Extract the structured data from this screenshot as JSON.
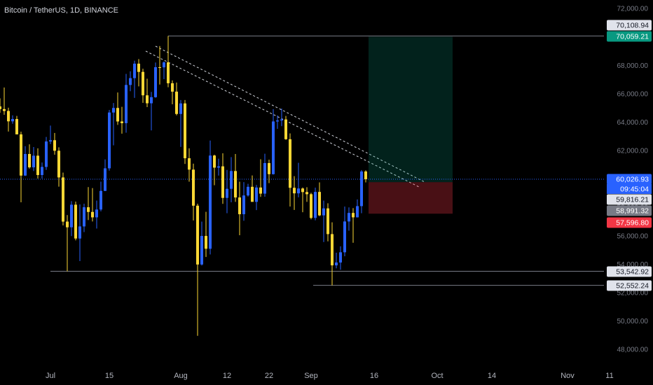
{
  "chart_data": {
    "type": "candlestick",
    "title": "Bitcoin / TetherUS, 1D, BINANCE",
    "up_color": "#2962ff",
    "down_color": "#fdd835",
    "x": [
      -12,
      -11,
      -10,
      -9,
      -8,
      -7,
      -6,
      -5,
      -4,
      -3,
      -2,
      -1,
      0,
      1,
      2,
      3,
      4,
      5,
      6,
      7,
      8,
      9,
      10,
      11,
      12,
      13,
      14,
      15,
      16,
      17,
      18,
      19,
      20,
      21,
      22,
      23,
      24,
      25,
      26,
      27,
      28,
      29,
      30,
      31,
      32,
      33,
      34,
      35,
      36,
      37,
      38,
      39,
      40,
      41,
      42,
      43,
      44,
      45,
      46,
      47,
      48,
      49,
      50,
      51,
      52,
      53,
      54,
      55,
      56,
      57,
      58,
      59,
      60,
      61,
      62,
      63,
      64,
      65,
      66,
      67,
      68,
      69,
      70,
      71,
      72,
      73,
      74,
      75
    ],
    "open": [
      65150,
      64960,
      64830,
      64100,
      64260,
      63180,
      60280,
      61800,
      60860,
      61680,
      60320,
      60890,
      62680,
      62770,
      62030,
      60150,
      57040,
      56640,
      58230,
      55850,
      56700,
      58050,
      57720,
      57340,
      57890,
      59200,
      60790,
      64720,
      65040,
      64090,
      63970,
      66660,
      67140,
      68160,
      67580,
      65930,
      65370,
      65800,
      67910,
      67900,
      68250,
      66780,
      66190,
      64620,
      65360,
      61500,
      60700,
      58160,
      54020,
      56030,
      55130,
      61690,
      60840,
      60930,
      58710,
      59350,
      60600,
      58740,
      57560,
      58880,
      59490,
      58430,
      59440,
      59010,
      61160,
      60380,
      64090,
      64160,
      64230,
      62840,
      59420,
      59030,
      59370,
      59120,
      58970,
      57300,
      59130,
      57480,
      57970,
      56160,
      53960,
      54160,
      54880,
      57050,
      57650,
      57340,
      58130,
      60570
    ],
    "high": [
      65720,
      66480,
      65060,
      64520,
      64480,
      63370,
      62350,
      62480,
      62290,
      62200,
      61200,
      63000,
      63800,
      63280,
      62270,
      60490,
      57500,
      58480,
      58450,
      58250,
      58300,
      59470,
      59400,
      58520,
      59850,
      61420,
      64900,
      65390,
      66130,
      65120,
      67440,
      67620,
      68370,
      68480,
      67800,
      67100,
      66170,
      68240,
      69400,
      68320,
      70108,
      66980,
      66830,
      65600,
      65600,
      62200,
      61120,
      58300,
      57040,
      57730,
      62750,
      61750,
      61470,
      61850,
      60680,
      61580,
      61800,
      59850,
      59820,
      59700,
      60290,
      59620,
      61430,
      61820,
      61400,
      64960,
      64520,
      65000,
      64480,
      63250,
      60240,
      61180,
      59440,
      59460,
      59070,
      59430,
      59800,
      58520,
      58330,
      56990,
      54850,
      55300,
      58100,
      58040,
      57990,
      58600,
      60670,
      60650
    ],
    "low": [
      64700,
      64560,
      63380,
      63930,
      63180,
      58400,
      60250,
      60770,
      60600,
      60070,
      60070,
      60680,
      62500,
      61750,
      59500,
      56770,
      53540,
      56020,
      55720,
      54260,
      56300,
      57150,
      57050,
      56550,
      57760,
      59200,
      60630,
      62410,
      63850,
      63230,
      63300,
      66220,
      65750,
      66560,
      65400,
      65100,
      63460,
      65760,
      66690,
      67070,
      66500,
      65300,
      64520,
      62300,
      61100,
      59850,
      57120,
      49000,
      53950,
      54550,
      54730,
      59600,
      60280,
      58290,
      57630,
      58400,
      58430,
      56080,
      57100,
      58800,
      58450,
      57850,
      58780,
      58790,
      59750,
      60350,
      63570,
      63760,
      62800,
      58100,
      57860,
      58750,
      57700,
      58430,
      57200,
      57130,
      57420,
      55600,
      55650,
      52550,
      53750,
      53650,
      54600,
      56400,
      55550,
      57330,
      57630,
      59800
    ],
    "close": [
      64960,
      64830,
      64100,
      64260,
      63180,
      60280,
      61800,
      60860,
      61680,
      60320,
      60890,
      62680,
      62770,
      62030,
      60150,
      57040,
      56640,
      58230,
      55850,
      56700,
      58050,
      57720,
      57340,
      57890,
      59200,
      60790,
      64720,
      65040,
      64090,
      63970,
      66660,
      67140,
      68160,
      67580,
      65930,
      65370,
      65800,
      67910,
      67900,
      68250,
      66780,
      66190,
      64620,
      65360,
      61500,
      60700,
      58160,
      54020,
      56030,
      55130,
      61690,
      60840,
      60930,
      58710,
      59350,
      60600,
      58740,
      57560,
      58880,
      59490,
      58430,
      59440,
      59010,
      61160,
      60380,
      64090,
      64160,
      64230,
      62840,
      59420,
      59030,
      59370,
      59120,
      58970,
      57300,
      59130,
      57480,
      57970,
      56160,
      53960,
      54160,
      54880,
      57050,
      57650,
      57340,
      58130,
      60570,
      60027
    ],
    "xlim": [
      -12,
      143.33
    ],
    "xticks": [
      {
        "value": 0,
        "label": "Jul"
      },
      {
        "value": 14,
        "label": "15"
      },
      {
        "value": 31,
        "label": "Aug"
      },
      {
        "value": 42,
        "label": "12"
      },
      {
        "value": 52,
        "label": "22"
      },
      {
        "value": 62,
        "label": "Sep"
      },
      {
        "value": 77,
        "label": "16"
      },
      {
        "value": 92,
        "label": "Oct"
      },
      {
        "value": 105,
        "label": "14"
      },
      {
        "value": 123,
        "label": "Nov"
      },
      {
        "value": 133,
        "label": "11"
      }
    ],
    "ylim": [
      46916,
      72641
    ],
    "yticks": [
      {
        "value": 48000,
        "label": "48,000.00"
      },
      {
        "value": 50000,
        "label": "50,000.00"
      },
      {
        "value": 52000,
        "label": "52,000.00"
      },
      {
        "value": 54000,
        "label": "54,000.00"
      },
      {
        "value": 56000,
        "label": "56,000.00"
      },
      {
        "value": 58000,
        "label": "58,000.00"
      },
      {
        "value": 60000,
        "label": "60,000.00"
      },
      {
        "value": 62000,
        "label": "62,000.00"
      },
      {
        "value": 64000,
        "label": "64,000.00"
      },
      {
        "value": 66000,
        "label": "66,000.00"
      },
      {
        "value": 68000,
        "label": "68,000.00"
      },
      {
        "value": 70000,
        "label": "70,000.00"
      },
      {
        "value": 72000,
        "label": "72,000.00"
      }
    ],
    "grid": false,
    "price_labels": [
      {
        "value": 70108.94,
        "label": "70,108.94",
        "bg": "#e0e3eb",
        "fg": "#131722"
      },
      {
        "value": 70059.21,
        "label": "70,059.21",
        "bg": "#089981",
        "fg": "#ffffff"
      },
      {
        "value": 60026.93,
        "label": "60,026.93",
        "bg": "#2962ff",
        "fg": "#ffffff"
      },
      {
        "value": 59816.21,
        "label": "59,816.21",
        "bg": "#e0e3eb",
        "fg": "#131722"
      },
      {
        "value": 58991.32,
        "label": "58,991.32",
        "bg": "#787b86",
        "fg": "#ffffff"
      },
      {
        "value": 57596.8,
        "label": "57,596.80",
        "bg": "#f23645",
        "fg": "#ffffff"
      },
      {
        "value": 53542.92,
        "label": "53,542.92",
        "bg": "#e0e3eb",
        "fg": "#131722"
      },
      {
        "value": 52552.24,
        "label": "52,552.24",
        "bg": "#e0e3eb",
        "fg": "#131722"
      }
    ],
    "countdown": "09:45:04"
  }
}
